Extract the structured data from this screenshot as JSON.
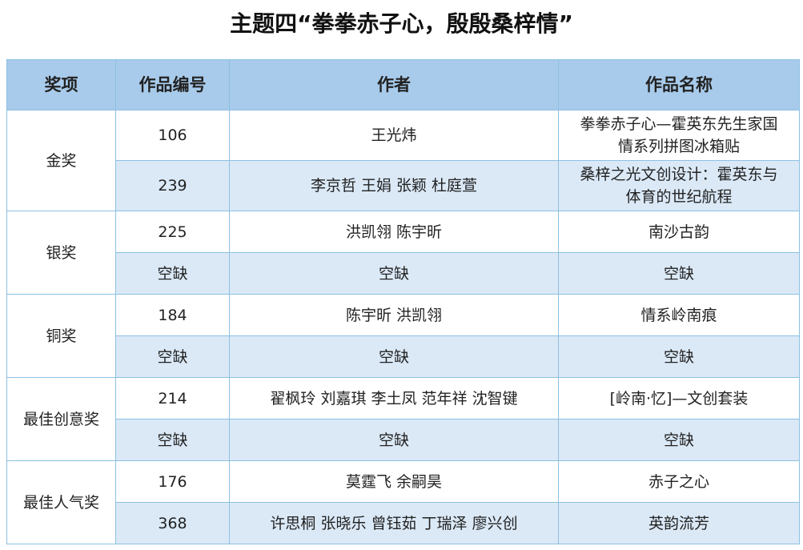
{
  "title": "主题四“拳拳赤子心，殷殷桑梓情”",
  "table": {
    "headers": [
      "奖项",
      "作品编号",
      "作者",
      "作品名称"
    ],
    "groups": [
      {
        "award": "金奖",
        "rows": [
          {
            "id": "106",
            "authors": "王光炜",
            "name": "拳拳赤子心—霍英东先生家国情系列拼图冰箱贴"
          },
          {
            "id": "239",
            "authors": "李京哲  王娟  张颖  杜庭萱",
            "name": "桑梓之光文创设计：霍英东与体育的世纪航程"
          }
        ]
      },
      {
        "award": "银奖",
        "rows": [
          {
            "id": "225",
            "authors": "洪凯翎  陈宇昕",
            "name": "南沙古韵"
          },
          {
            "id": "空缺",
            "authors": "空缺",
            "name": "空缺"
          }
        ]
      },
      {
        "award": "铜奖",
        "rows": [
          {
            "id": "184",
            "authors": "陈宇昕  洪凯翎",
            "name": "情系岭南痕"
          },
          {
            "id": "空缺",
            "authors": "空缺",
            "name": "空缺"
          }
        ]
      },
      {
        "award": "最佳创意奖",
        "rows": [
          {
            "id": "214",
            "authors": "翟枫玲  刘嘉琪  李土凤  范年祥  沈智键",
            "name": "[岭南·忆]—文创套装"
          },
          {
            "id": "空缺",
            "authors": "空缺",
            "name": "空缺"
          }
        ]
      },
      {
        "award": "最佳人气奖",
        "rows": [
          {
            "id": "176",
            "authors": "莫霆飞  余嗣昊",
            "name": "赤子之心"
          },
          {
            "id": "368",
            "authors": "许思桐  张晓乐  曾钰茹  丁瑞泽  廖兴创",
            "name": "英韵流芳"
          }
        ]
      }
    ]
  },
  "colors": {
    "header_bg": "#a8cbeb",
    "alt_row_bg": "#dbe9f7",
    "border": "#8dc0e2"
  }
}
